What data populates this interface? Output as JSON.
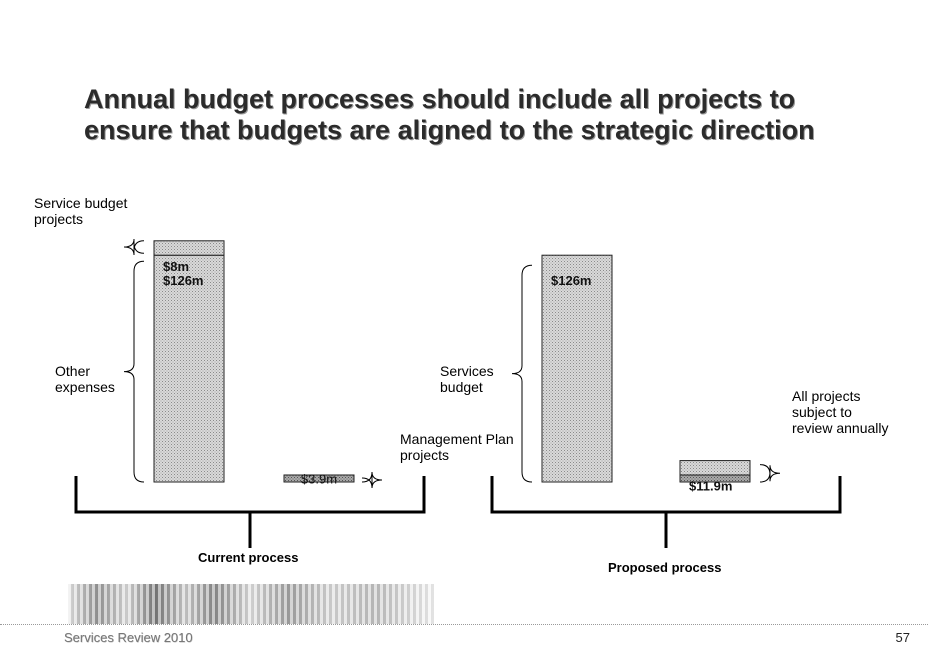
{
  "title_lines": [
    "Annual budget processes should include all projects to",
    "ensure that budgets are aligned to the strategic direction"
  ],
  "chart_data": {
    "type": "bar",
    "stacked": true,
    "groups": [
      {
        "name": "Current process",
        "bars": [
          {
            "segments": [
              {
                "value": 126,
                "label": "$126m",
                "annotation": "Other expenses",
                "shade": "light"
              },
              {
                "value": 8,
                "label": "$8m",
                "annotation": "Service budget projects",
                "shade": "light"
              }
            ]
          },
          {
            "segments": [
              {
                "value": 3.9,
                "label": "$3.9m",
                "annotation": "Management Plan projects",
                "shade": "dark"
              }
            ]
          }
        ]
      },
      {
        "name": "Proposed process",
        "bars": [
          {
            "segments": [
              {
                "value": 126,
                "label": "$126m",
                "annotation": "Services budget",
                "shade": "light"
              }
            ]
          },
          {
            "segments": [
              {
                "value": 3.9,
                "label": "",
                "annotation": "",
                "shade": "dark"
              },
              {
                "value": 8,
                "label": "$11.9m",
                "annotation": "",
                "shade": "light"
              }
            ],
            "annotation": "All projects subject to review annually"
          }
        ]
      }
    ],
    "colors": {
      "light": "#c7c7c7",
      "dark": "#909090"
    }
  },
  "annotations": {
    "service_budget_projects": [
      "Service budget",
      "projects"
    ],
    "other_expenses": [
      "Other",
      "expenses"
    ],
    "management_plan_projects": [
      "Management Plan",
      "projects"
    ],
    "services_budget": [
      "Services",
      "budget"
    ],
    "all_projects_review": [
      "All projects",
      "subject to",
      "review annually"
    ]
  },
  "footer": {
    "text": "Services Review 2010",
    "page_number": "57"
  }
}
